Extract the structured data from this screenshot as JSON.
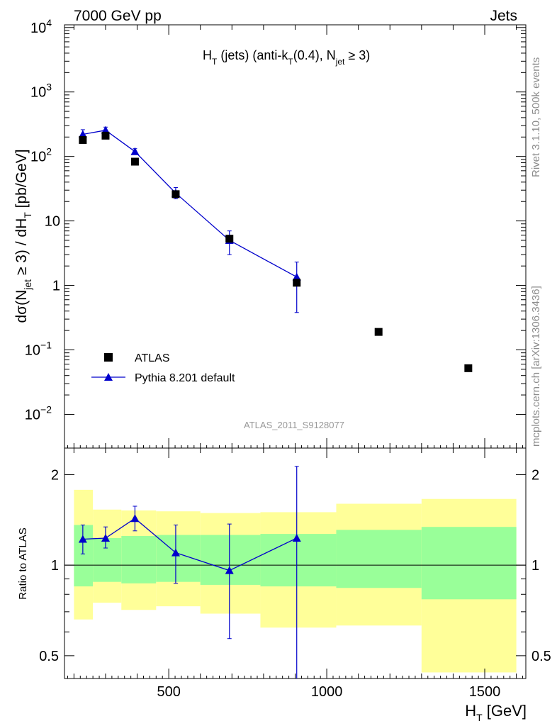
{
  "header": {
    "left": "7000 GeV pp",
    "right": "Jets"
  },
  "title": {
    "main": "H",
    "sub1": "T",
    "mid": " (jets) (anti-k",
    "sub2": "T",
    "mid2": "(0.4), N",
    "sub3": "jet",
    "tail": " ≥ 3)"
  },
  "watermark": "ATLAS_2011_S9128077",
  "side_labels": {
    "rivet": "Rivet 3.1.10,  500k events",
    "mcplots": "mcplots.cern.ch [arXiv:1306.3436]"
  },
  "axes": {
    "xlabel_main": "H",
    "xlabel_sub": "T",
    "xlabel_unit": " [GeV]",
    "ylabel_parts": [
      "dσ(N",
      "jet",
      " ≥ 3) / dH",
      "T",
      " [pb/GeV]"
    ],
    "ratio_ylabel": "Ratio to ATLAS",
    "x_ticks": [
      {
        "v": 500,
        "label": "500"
      },
      {
        "v": 1000,
        "label": "1000"
      },
      {
        "v": 1500,
        "label": "1500"
      }
    ],
    "y_ticks_top": [
      {
        "v": 10000,
        "base": "10",
        "exp": "4"
      },
      {
        "v": 1000,
        "base": "10",
        "exp": "3"
      },
      {
        "v": 100,
        "base": "10",
        "exp": "2"
      },
      {
        "v": 10,
        "base": "10",
        "exp": ""
      },
      {
        "v": 1,
        "base": "1",
        "exp": ""
      },
      {
        "v": 0.1,
        "base": "10",
        "exp": "−1"
      },
      {
        "v": 0.01,
        "base": "10",
        "exp": "−2"
      }
    ],
    "y_ticks_ratio": [
      {
        "v": 2,
        "label": "2"
      },
      {
        "v": 1,
        "label": "1"
      },
      {
        "v": 0.5,
        "label": "0.5"
      }
    ]
  },
  "legend": {
    "data_label": "ATLAS",
    "mc_label": "Pythia 8.201 default"
  },
  "colors": {
    "data": "#000000",
    "mc": "#0000cc",
    "band_inner": "#99ff99",
    "band_outer": "#ffff99"
  },
  "chart_data": {
    "type": "scatter",
    "x_range": [
      170,
      1630
    ],
    "y_range_log": [
      0.003,
      11000
    ],
    "ratio_range_log": [
      0.42,
      2.45
    ],
    "log_y": true,
    "bins": [
      {
        "xlo": 200,
        "xhi": 260,
        "x": 228,
        "data": 180,
        "mc": 220,
        "mc_err_lo": 180,
        "mc_err_hi": 260,
        "band_in": [
          0.85,
          1.36
        ],
        "band_out": [
          0.66,
          1.78
        ]
      },
      {
        "xlo": 260,
        "xhi": 350,
        "x": 300,
        "data": 210,
        "mc": 255,
        "mc_err_lo": 225,
        "mc_err_hi": 285,
        "band_in": [
          0.88,
          1.23
        ],
        "band_out": [
          0.75,
          1.53
        ]
      },
      {
        "xlo": 350,
        "xhi": 460,
        "x": 393,
        "data": 83,
        "mc": 119,
        "mc_err_lo": 108,
        "mc_err_hi": 132,
        "band_in": [
          0.87,
          1.25
        ],
        "band_out": [
          0.71,
          1.52
        ]
      },
      {
        "xlo": 460,
        "xhi": 600,
        "x": 522,
        "data": 26,
        "mc": 27,
        "mc_err_lo": 22,
        "mc_err_hi": 33,
        "band_in": [
          0.88,
          1.26
        ],
        "band_out": [
          0.73,
          1.51
        ]
      },
      {
        "xlo": 600,
        "xhi": 790,
        "x": 692,
        "data": 5.3,
        "mc": 5.0,
        "mc_err_lo": 3.0,
        "mc_err_hi": 7.0,
        "band_in": [
          0.86,
          1.26
        ],
        "band_out": [
          0.69,
          1.49
        ]
      },
      {
        "xlo": 790,
        "xhi": 1030,
        "x": 905,
        "data": 1.1,
        "mc": 1.35,
        "mc_err_lo": 0.38,
        "mc_err_hi": 2.3,
        "band_in": [
          0.85,
          1.27
        ],
        "band_out": [
          0.62,
          1.5
        ]
      },
      {
        "xlo": 1030,
        "xhi": 1300,
        "x": 1164,
        "data": 0.19,
        "mc": null,
        "mc_err_lo": null,
        "mc_err_hi": null,
        "band_in": [
          0.84,
          1.31
        ],
        "band_out": [
          0.63,
          1.6
        ]
      },
      {
        "xlo": 1300,
        "xhi": 1600,
        "x": 1448,
        "data": 0.052,
        "mc": null,
        "mc_err_lo": null,
        "mc_err_hi": null,
        "band_in": [
          0.77,
          1.34
        ],
        "band_out": [
          0.44,
          1.66
        ]
      }
    ],
    "ratio_points": [
      {
        "x": 228,
        "r": 1.22,
        "lo": 1.09,
        "hi": 1.36
      },
      {
        "x": 300,
        "r": 1.23,
        "lo": 1.14,
        "hi": 1.34
      },
      {
        "x": 393,
        "r": 1.43,
        "lo": 1.3,
        "hi": 1.57
      },
      {
        "x": 522,
        "r": 1.1,
        "lo": 0.87,
        "hi": 1.36
      },
      {
        "x": 692,
        "r": 0.96,
        "lo": 0.57,
        "hi": 1.37
      },
      {
        "x": 905,
        "r": 1.23,
        "lo": 0.3,
        "hi": 2.13
      }
    ]
  }
}
